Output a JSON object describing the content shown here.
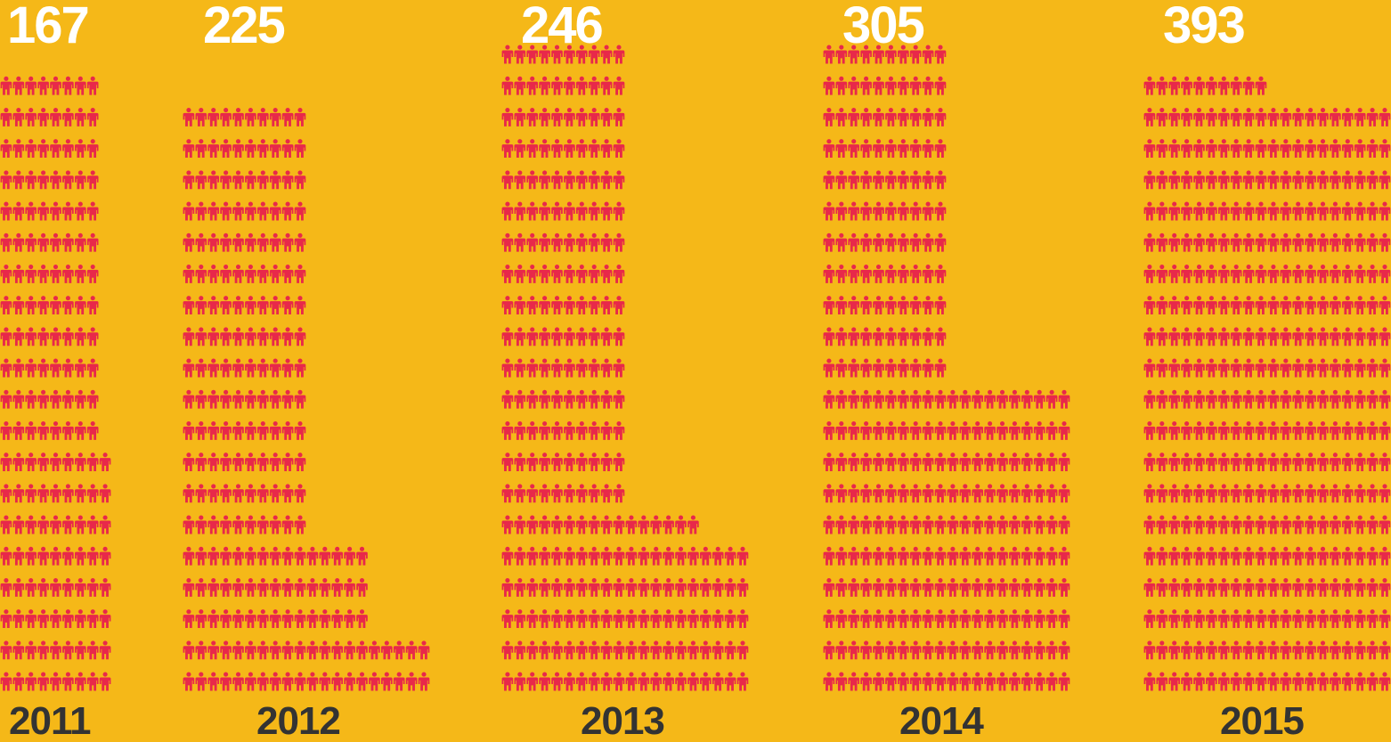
{
  "chart_data": {
    "type": "pictograph",
    "unit": "person-icon",
    "colors": {
      "background": "#F5B818",
      "icon": "#E8284A",
      "count_text": "#FFFFFF",
      "year_text": "#333333"
    },
    "categories": [
      "2011",
      "2012",
      "2013",
      "2014",
      "2015"
    ],
    "values": [
      167,
      225,
      246,
      305,
      393
    ]
  }
}
